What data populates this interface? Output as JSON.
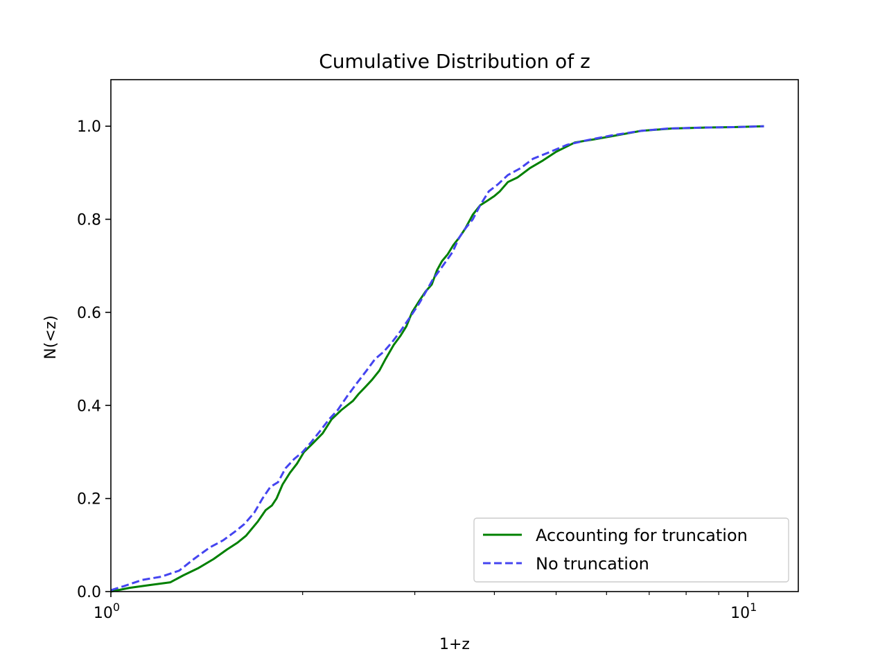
{
  "chart_data": {
    "type": "line",
    "title": "Cumulative Distribution of z",
    "xlabel": "1+z",
    "ylabel": "N(<z)",
    "xscale": "log",
    "xlim": [
      1.0,
      12.0
    ],
    "ylim": [
      0.0,
      1.1
    ],
    "grid": false,
    "legend_position": "lower-right",
    "x_ticks": [
      {
        "value": 1,
        "base": "10",
        "exp": "0"
      },
      {
        "value": 10,
        "base": "10",
        "exp": "1"
      }
    ],
    "y_ticks": [
      {
        "value": 0.0,
        "label": "0.0"
      },
      {
        "value": 0.2,
        "label": "0.2"
      },
      {
        "value": 0.4,
        "label": "0.4"
      },
      {
        "value": 0.6,
        "label": "0.6"
      },
      {
        "value": 0.8,
        "label": "0.8"
      },
      {
        "value": 1.0,
        "label": "1.0"
      }
    ],
    "minor_x_ticks": [
      2,
      3,
      4,
      5,
      6,
      7,
      8,
      9
    ],
    "series": [
      {
        "name": "Accounting for truncation",
        "color": "#008000",
        "style": "solid",
        "x": [
          1.0,
          1.07,
          1.15,
          1.24,
          1.3,
          1.37,
          1.45,
          1.52,
          1.58,
          1.63,
          1.7,
          1.75,
          1.79,
          1.82,
          1.86,
          1.91,
          1.96,
          2.01,
          2.08,
          2.15,
          2.22,
          2.3,
          2.4,
          2.45,
          2.51,
          2.57,
          2.64,
          2.7,
          2.78,
          2.85,
          2.91,
          2.97,
          3.05,
          3.12,
          3.19,
          3.25,
          3.31,
          3.38,
          3.45,
          3.52,
          3.6,
          3.7,
          3.8,
          3.9,
          4.0,
          4.08,
          4.2,
          4.35,
          4.55,
          4.75,
          5.0,
          5.35,
          5.75,
          6.2,
          6.8,
          7.6,
          8.5,
          9.5,
          10.6
        ],
        "y": [
          0.0,
          0.008,
          0.014,
          0.02,
          0.035,
          0.05,
          0.07,
          0.09,
          0.105,
          0.12,
          0.15,
          0.175,
          0.185,
          0.2,
          0.23,
          0.255,
          0.275,
          0.3,
          0.32,
          0.34,
          0.37,
          0.39,
          0.41,
          0.425,
          0.44,
          0.455,
          0.475,
          0.5,
          0.53,
          0.55,
          0.57,
          0.6,
          0.625,
          0.645,
          0.66,
          0.69,
          0.71,
          0.725,
          0.745,
          0.76,
          0.78,
          0.81,
          0.83,
          0.84,
          0.85,
          0.86,
          0.88,
          0.89,
          0.91,
          0.925,
          0.945,
          0.965,
          0.972,
          0.98,
          0.99,
          0.995,
          0.997,
          0.998,
          1.0
        ]
      },
      {
        "name": "No truncation",
        "color": "#4444f0",
        "style": "dashed",
        "x": [
          1.0,
          1.05,
          1.12,
          1.2,
          1.28,
          1.35,
          1.43,
          1.5,
          1.57,
          1.62,
          1.68,
          1.73,
          1.78,
          1.83,
          1.88,
          1.94,
          2.0,
          2.06,
          2.13,
          2.2,
          2.27,
          2.35,
          2.44,
          2.52,
          2.6,
          2.68,
          2.76,
          2.85,
          2.95,
          3.0,
          3.05,
          3.14,
          3.2,
          3.28,
          3.36,
          3.44,
          3.52,
          3.6,
          3.7,
          3.8,
          3.92,
          4.05,
          4.2,
          4.4,
          4.6,
          4.9,
          5.2,
          5.6,
          6.1,
          6.8,
          7.5,
          8.5,
          9.5,
          10.6
        ],
        "y": [
          0.003,
          0.012,
          0.025,
          0.032,
          0.045,
          0.07,
          0.095,
          0.11,
          0.13,
          0.145,
          0.17,
          0.2,
          0.225,
          0.235,
          0.265,
          0.285,
          0.3,
          0.32,
          0.345,
          0.37,
          0.39,
          0.42,
          0.45,
          0.475,
          0.5,
          0.515,
          0.535,
          0.56,
          0.59,
          0.605,
          0.62,
          0.65,
          0.67,
          0.69,
          0.71,
          0.73,
          0.76,
          0.78,
          0.8,
          0.83,
          0.86,
          0.875,
          0.895,
          0.91,
          0.93,
          0.945,
          0.96,
          0.97,
          0.98,
          0.99,
          0.995,
          0.997,
          0.998,
          1.0
        ]
      }
    ]
  }
}
